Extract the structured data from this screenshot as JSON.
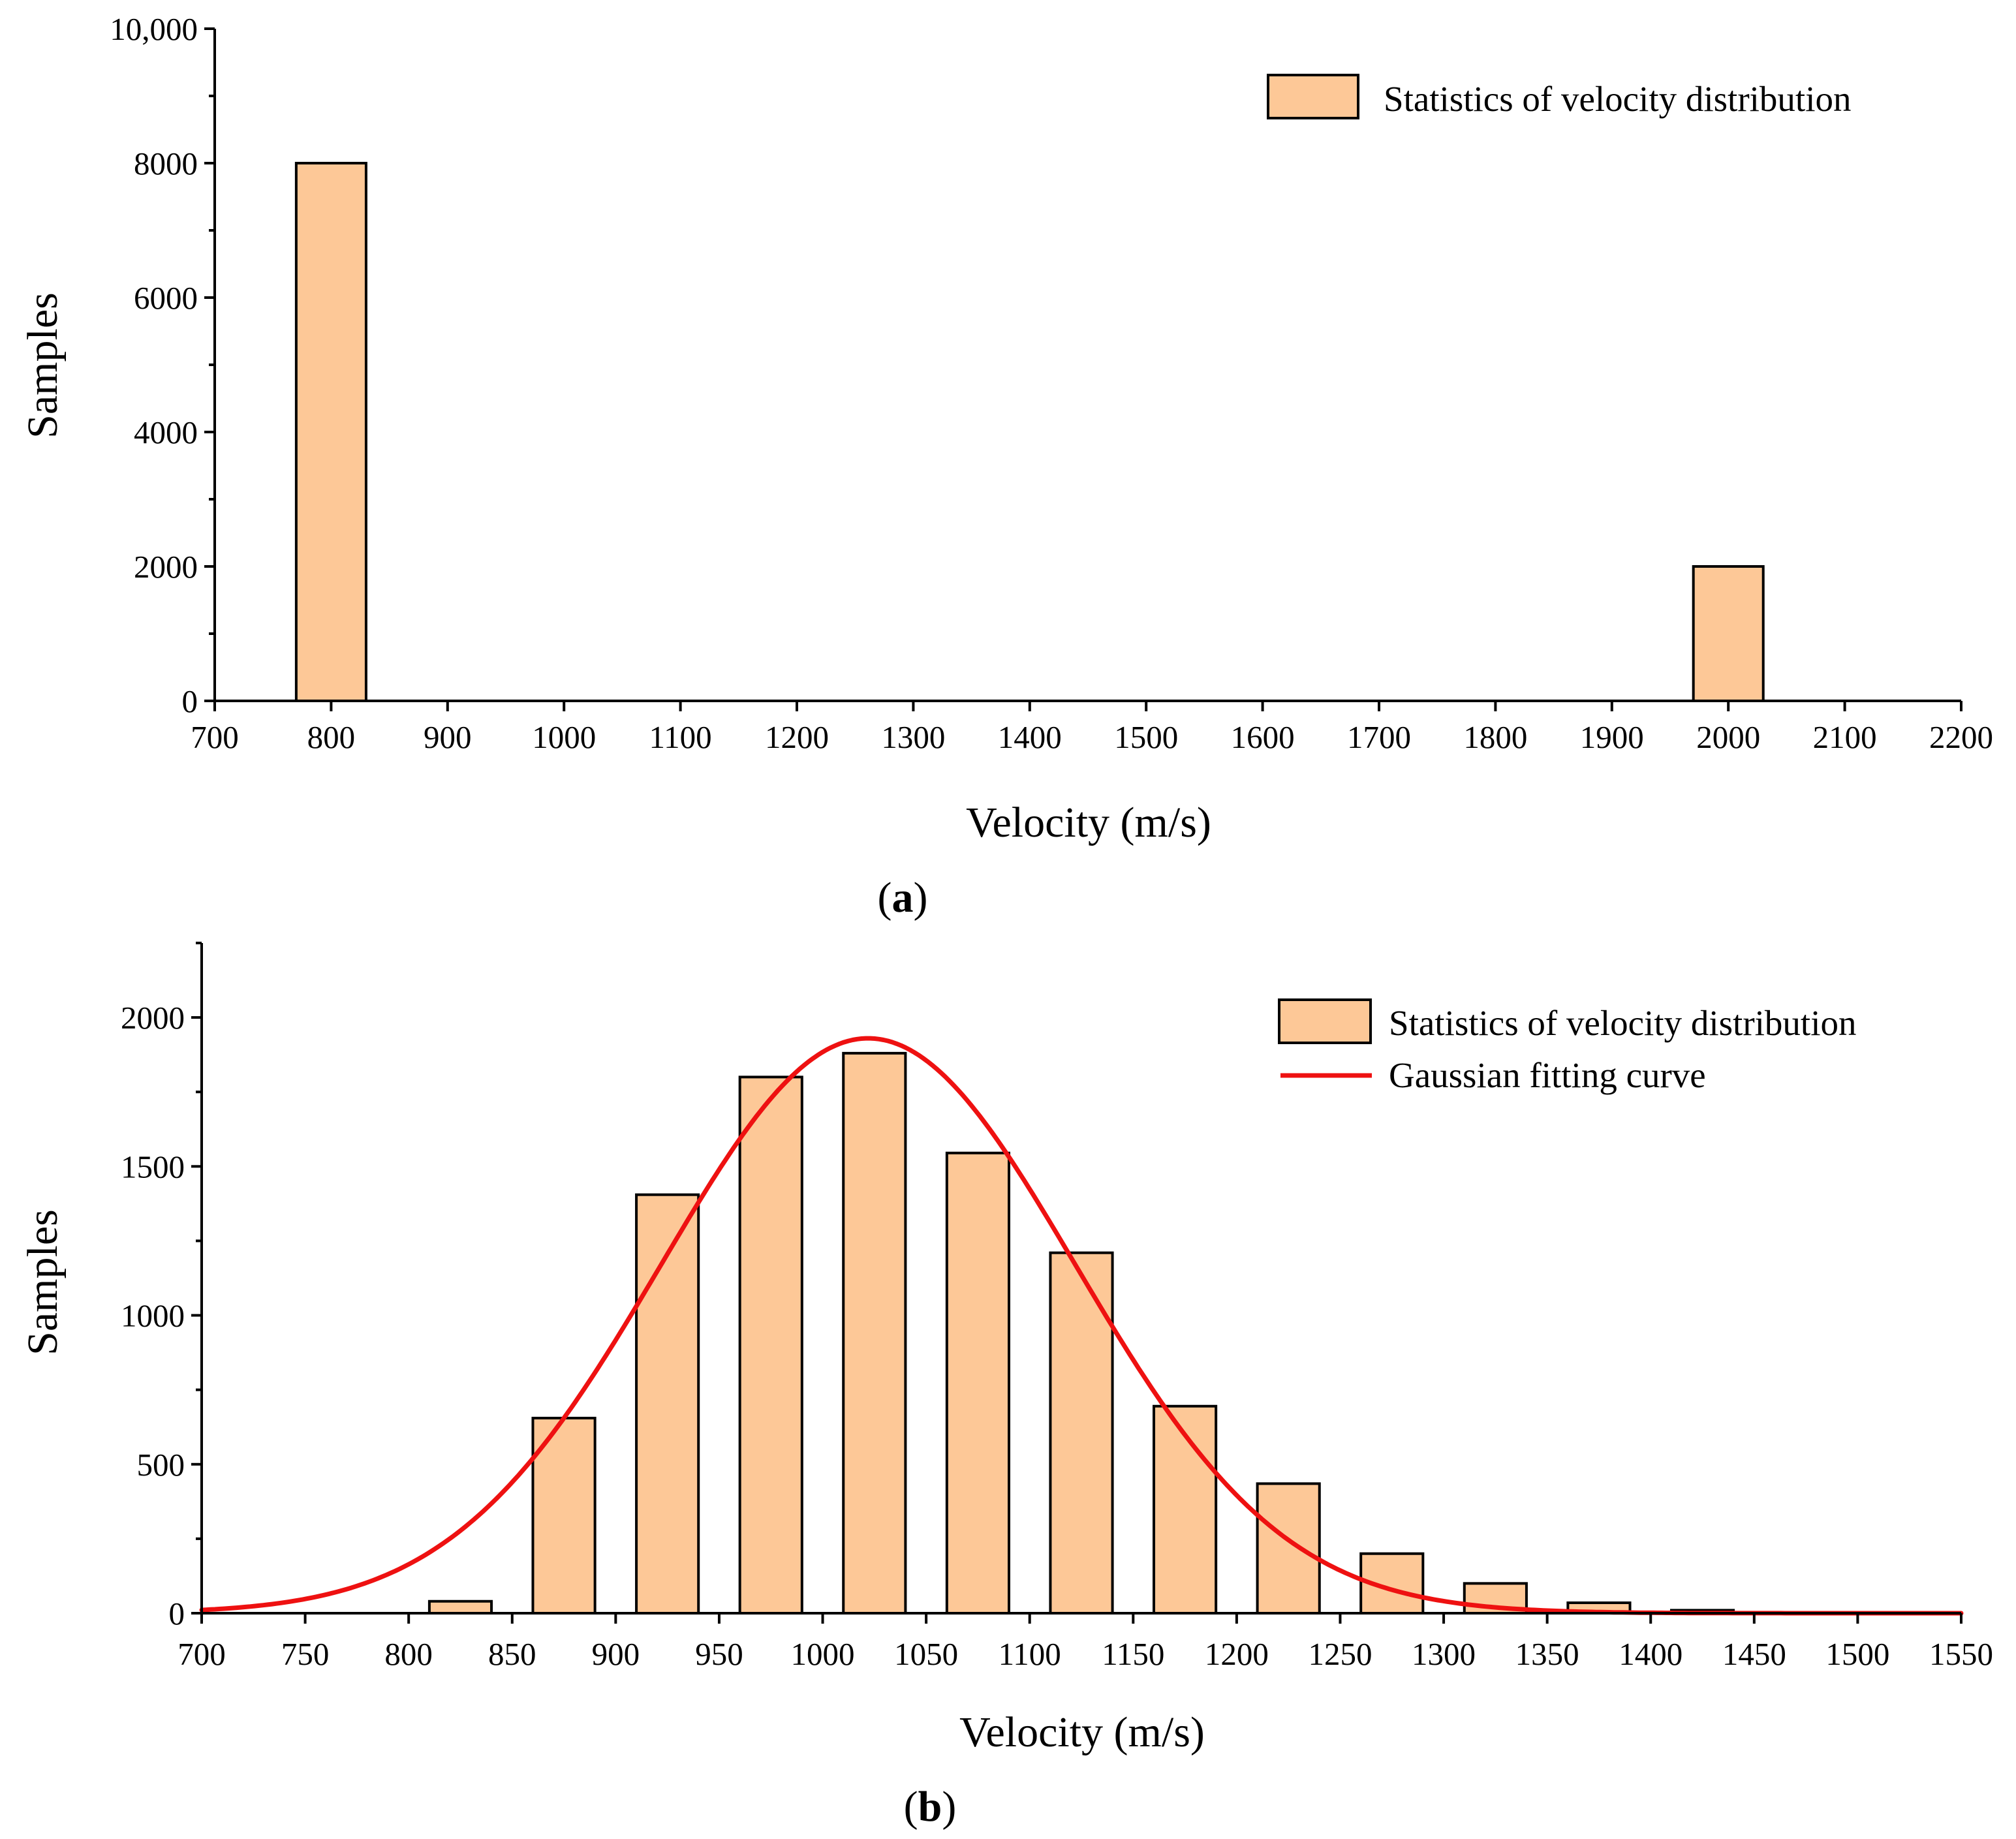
{
  "chart_data": [
    {
      "type": "bar",
      "panel": "a",
      "caption_open": "(",
      "caption_letter": "a",
      "caption_close": ")",
      "xlabel": "Velocity (m/s)",
      "ylabel": "Samples",
      "xlim": [
        700,
        2200
      ],
      "ylim": [
        0,
        10000
      ],
      "x_ticks": [
        700,
        800,
        900,
        1000,
        1100,
        1200,
        1300,
        1400,
        1500,
        1600,
        1700,
        1800,
        1900,
        2000,
        2100,
        2200
      ],
      "x_tick_labels": [
        "700",
        "800",
        "900",
        "1000",
        "1100",
        "1200",
        "1300",
        "1400",
        "1500",
        "1600",
        "1700",
        "1800",
        "1900",
        "2000",
        "2100",
        "2200"
      ],
      "y_ticks": [
        0,
        2000,
        4000,
        6000,
        8000,
        10000
      ],
      "y_tick_labels": [
        "0",
        "2000",
        "4000",
        "6000",
        "8000",
        "10,000"
      ],
      "y_minor_step": 1000,
      "bin_width": 60,
      "series": [
        {
          "name": "Statistics of velocity distribution",
          "x": [
            800,
            2000
          ],
          "values": [
            8000,
            2000
          ]
        }
      ],
      "legend": [
        "Statistics of velocity distribution"
      ],
      "legend_position": "top-right",
      "colors": {
        "bar_fill": "#FDC897",
        "edge": "#000000"
      }
    },
    {
      "type": "bar",
      "panel": "b",
      "caption_open": "(",
      "caption_letter": "b",
      "caption_close": ")",
      "xlabel": "Velocity (m/s)",
      "ylabel": "Samples",
      "xlim": [
        700,
        1550
      ],
      "ylim": [
        0,
        2250
      ],
      "x_ticks": [
        700,
        750,
        800,
        850,
        900,
        950,
        1000,
        1050,
        1100,
        1150,
        1200,
        1250,
        1300,
        1350,
        1400,
        1450,
        1500,
        1550
      ],
      "x_tick_labels": [
        "700",
        "750",
        "800",
        "850",
        "900",
        "950",
        "1000",
        "1050",
        "1100",
        "1150",
        "1200",
        "1250",
        "1300",
        "1350",
        "1400",
        "1450",
        "1500",
        "1550"
      ],
      "y_ticks": [
        0,
        500,
        1000,
        1500,
        2000
      ],
      "y_tick_labels": [
        "0",
        "500",
        "1000",
        "1500",
        "2000"
      ],
      "y_minor_step": 250,
      "bin_width": 30,
      "series": [
        {
          "name": "Statistics of velocity distribution",
          "x": [
            825,
            875,
            925,
            975,
            1025,
            1075,
            1125,
            1175,
            1225,
            1275,
            1325,
            1375,
            1425
          ],
          "values": [
            40,
            655,
            1405,
            1800,
            1880,
            1545,
            1210,
            695,
            435,
            200,
            100,
            35,
            10
          ]
        },
        {
          "name": "Gaussian fitting curve",
          "type": "line",
          "model": "gaussian",
          "amplitude": 1930,
          "mean": 1022,
          "sigma": 100
        }
      ],
      "legend": [
        "Statistics of velocity distribution",
        "Gaussian fitting curve"
      ],
      "legend_position": "top-right",
      "colors": {
        "bar_fill": "#FDC897",
        "edge": "#000000",
        "fit_line": "#EE1111"
      }
    }
  ]
}
